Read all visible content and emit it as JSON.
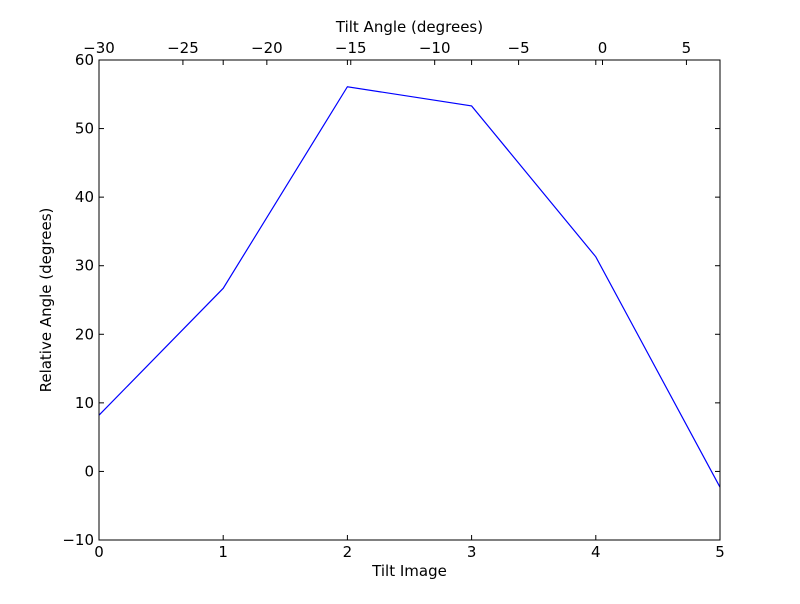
{
  "chart_data": {
    "type": "line",
    "xlabel": "Tilt Image",
    "ylabel": "Relative Angle (degrees)",
    "top_xlabel": "Tilt Angle (degrees)",
    "xlim": [
      0,
      5
    ],
    "ylim": [
      -10,
      60
    ],
    "top_xlim": [
      -30,
      7
    ],
    "xticks": [
      0,
      1,
      2,
      3,
      4,
      5
    ],
    "yticks": [
      -10,
      0,
      10,
      20,
      30,
      40,
      50,
      60
    ],
    "top_xticks": [
      -30,
      -25,
      -20,
      -15,
      -10,
      -5,
      0,
      5
    ],
    "xtick_labels": [
      "0",
      "1",
      "2",
      "3",
      "4",
      "5"
    ],
    "ytick_labels": [
      "−10",
      "0",
      "10",
      "20",
      "30",
      "40",
      "50",
      "60"
    ],
    "top_xtick_labels": [
      "−30",
      "−25",
      "−20",
      "−15",
      "−10",
      "−5",
      "0",
      "5"
    ],
    "grid": false,
    "series": [
      {
        "color": "#0000ff",
        "x": [
          0,
          1,
          2,
          3,
          4,
          5
        ],
        "y": [
          8.2,
          26.7,
          56.1,
          53.3,
          31.3,
          -2.3
        ]
      }
    ]
  }
}
